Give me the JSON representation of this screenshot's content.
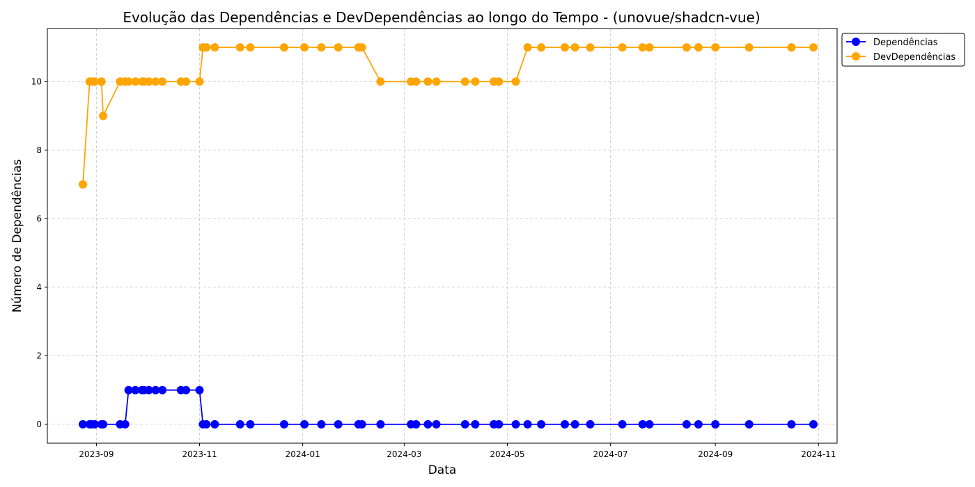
{
  "chart_data": {
    "type": "line",
    "title": "Evolução das Dependências e DevDependências ao longo do Tempo - (unovue/shadcn-vue)",
    "xlabel": "Data",
    "ylabel": "Número de Dependências",
    "x_ticks": [
      "2023-09",
      "2023-11",
      "2024-01",
      "2024-03",
      "2024-05",
      "2024-07",
      "2024-09",
      "2024-11"
    ],
    "y_ticks": [
      0,
      2,
      4,
      6,
      8,
      10
    ],
    "xlim": [
      "2023-08-03",
      "2024-11-12"
    ],
    "ylim": [
      -0.55,
      11.55
    ],
    "grid": true,
    "legend_position": "top-right-outside",
    "series": [
      {
        "name": "Dependências",
        "color": "#0000ff",
        "points": [
          [
            "2023-08-24",
            0
          ],
          [
            "2023-08-28",
            0
          ],
          [
            "2023-08-29",
            0
          ],
          [
            "2023-08-31",
            0
          ],
          [
            "2023-09-04",
            0
          ],
          [
            "2023-09-05",
            0
          ],
          [
            "2023-09-15",
            0
          ],
          [
            "2023-09-18",
            0
          ],
          [
            "2023-09-20",
            1
          ],
          [
            "2023-09-24",
            1
          ],
          [
            "2023-09-28",
            1
          ],
          [
            "2023-09-29",
            1
          ],
          [
            "2023-10-02",
            1
          ],
          [
            "2023-10-06",
            1
          ],
          [
            "2023-10-10",
            1
          ],
          [
            "2023-10-21",
            1
          ],
          [
            "2023-10-24",
            1
          ],
          [
            "2023-11-01",
            1
          ],
          [
            "2023-11-03",
            0
          ],
          [
            "2023-11-05",
            0
          ],
          [
            "2023-11-10",
            0
          ],
          [
            "2023-11-25",
            0
          ],
          [
            "2023-12-01",
            0
          ],
          [
            "2023-12-21",
            0
          ],
          [
            "2024-01-02",
            0
          ],
          [
            "2024-01-12",
            0
          ],
          [
            "2024-01-22",
            0
          ],
          [
            "2024-02-03",
            0
          ],
          [
            "2024-02-05",
            0
          ],
          [
            "2024-02-16",
            0
          ],
          [
            "2024-03-05",
            0
          ],
          [
            "2024-03-08",
            0
          ],
          [
            "2024-03-15",
            0
          ],
          [
            "2024-03-20",
            0
          ],
          [
            "2024-04-06",
            0
          ],
          [
            "2024-04-12",
            0
          ],
          [
            "2024-04-23",
            0
          ],
          [
            "2024-04-26",
            0
          ],
          [
            "2024-05-06",
            0
          ],
          [
            "2024-05-13",
            0
          ],
          [
            "2024-05-21",
            0
          ],
          [
            "2024-06-04",
            0
          ],
          [
            "2024-06-10",
            0
          ],
          [
            "2024-06-19",
            0
          ],
          [
            "2024-07-08",
            0
          ],
          [
            "2024-07-20",
            0
          ],
          [
            "2024-07-24",
            0
          ],
          [
            "2024-08-15",
            0
          ],
          [
            "2024-08-22",
            0
          ],
          [
            "2024-09-01",
            0
          ],
          [
            "2024-09-21",
            0
          ],
          [
            "2024-10-16",
            0
          ],
          [
            "2024-10-29",
            0
          ]
        ]
      },
      {
        "name": "DevDependências",
        "color": "#ffa500",
        "points": [
          [
            "2023-08-24",
            7
          ],
          [
            "2023-08-28",
            10
          ],
          [
            "2023-08-29",
            10
          ],
          [
            "2023-08-31",
            10
          ],
          [
            "2023-09-04",
            10
          ],
          [
            "2023-09-05",
            9
          ],
          [
            "2023-09-15",
            10
          ],
          [
            "2023-09-18",
            10
          ],
          [
            "2023-09-20",
            10
          ],
          [
            "2023-09-24",
            10
          ],
          [
            "2023-09-28",
            10
          ],
          [
            "2023-09-29",
            10
          ],
          [
            "2023-10-02",
            10
          ],
          [
            "2023-10-06",
            10
          ],
          [
            "2023-10-10",
            10
          ],
          [
            "2023-10-21",
            10
          ],
          [
            "2023-10-24",
            10
          ],
          [
            "2023-11-01",
            10
          ],
          [
            "2023-11-03",
            11
          ],
          [
            "2023-11-05",
            11
          ],
          [
            "2023-11-10",
            11
          ],
          [
            "2023-11-25",
            11
          ],
          [
            "2023-12-01",
            11
          ],
          [
            "2023-12-21",
            11
          ],
          [
            "2024-01-02",
            11
          ],
          [
            "2024-01-12",
            11
          ],
          [
            "2024-01-22",
            11
          ],
          [
            "2024-02-03",
            11
          ],
          [
            "2024-02-05",
            11
          ],
          [
            "2024-02-16",
            10
          ],
          [
            "2024-03-05",
            10
          ],
          [
            "2024-03-08",
            10
          ],
          [
            "2024-03-15",
            10
          ],
          [
            "2024-03-20",
            10
          ],
          [
            "2024-04-06",
            10
          ],
          [
            "2024-04-12",
            10
          ],
          [
            "2024-04-23",
            10
          ],
          [
            "2024-04-26",
            10
          ],
          [
            "2024-05-06",
            10
          ],
          [
            "2024-05-13",
            11
          ],
          [
            "2024-05-21",
            11
          ],
          [
            "2024-06-04",
            11
          ],
          [
            "2024-06-10",
            11
          ],
          [
            "2024-06-19",
            11
          ],
          [
            "2024-07-08",
            11
          ],
          [
            "2024-07-20",
            11
          ],
          [
            "2024-07-24",
            11
          ],
          [
            "2024-08-15",
            11
          ],
          [
            "2024-08-22",
            11
          ],
          [
            "2024-09-01",
            11
          ],
          [
            "2024-09-21",
            11
          ],
          [
            "2024-10-16",
            11
          ],
          [
            "2024-10-29",
            11
          ]
        ]
      }
    ]
  }
}
